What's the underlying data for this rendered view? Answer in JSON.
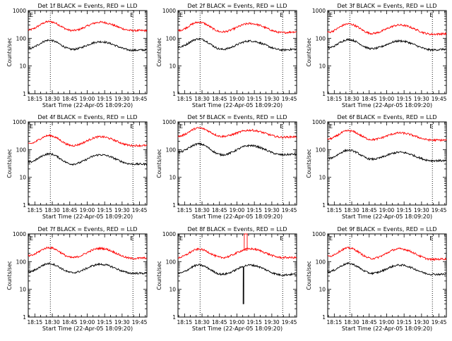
{
  "shared": {
    "xlabel": "Start Time (22-Apr-05 18:09:20)",
    "ylabel": "Counts/sec",
    "x_ticks": [
      "18:15",
      "18:30",
      "18:45",
      "19:00",
      "19:15",
      "19:30",
      "19:45"
    ],
    "y_ticks": [
      "1",
      "10",
      "100",
      "1000"
    ],
    "marker_left": "E",
    "marker_right": "E",
    "series_colors": {
      "events": "#000000",
      "lld": "#ff0000"
    }
  },
  "chart_data": [
    {
      "type": "line",
      "title": "Det 1f BLACK = Events, RED = LLD",
      "ylim": [
        1,
        1000
      ],
      "yscale": "log",
      "x_unit": "minutes after 18:09:20",
      "series": [
        {
          "key": "lld",
          "peaks": [
            [
              18,
              400
            ],
            [
              38,
              190
            ],
            [
              62,
              380
            ],
            [
              90,
              190
            ],
            [
              100,
              190
            ]
          ]
        },
        {
          "key": "events",
          "peaks": [
            [
              18,
              85
            ],
            [
              38,
              40
            ],
            [
              62,
              75
            ],
            [
              90,
              37
            ],
            [
              100,
              38
            ]
          ]
        }
      ]
    },
    {
      "type": "line",
      "title": "Det 2f BLACK = Events, RED = LLD",
      "ylim": [
        1,
        1000
      ],
      "yscale": "log",
      "x_unit": "minutes after 18:09:20",
      "series": [
        {
          "key": "lld",
          "peaks": [
            [
              18,
              380
            ],
            [
              38,
              170
            ],
            [
              62,
              340
            ],
            [
              90,
              160
            ],
            [
              100,
              170
            ]
          ]
        },
        {
          "key": "events",
          "peaks": [
            [
              18,
              95
            ],
            [
              38,
              40
            ],
            [
              62,
              80
            ],
            [
              90,
              38
            ],
            [
              100,
              40
            ]
          ]
        }
      ]
    },
    {
      "type": "line",
      "title": "Det 3f BLACK = Events, RED = LLD",
      "ylim": [
        1,
        1000
      ],
      "yscale": "log",
      "x_unit": "minutes after 18:09:20",
      "series": [
        {
          "key": "lld",
          "peaks": [
            [
              18,
              330
            ],
            [
              38,
              150
            ],
            [
              62,
              300
            ],
            [
              90,
              140
            ],
            [
              100,
              145
            ]
          ]
        },
        {
          "key": "events",
          "peaks": [
            [
              18,
              90
            ],
            [
              38,
              42
            ],
            [
              62,
              80
            ],
            [
              90,
              38
            ],
            [
              100,
              40
            ]
          ]
        }
      ]
    },
    {
      "type": "line",
      "title": "Det 4f BLACK = Events, RED = LLD",
      "ylim": [
        1,
        1000
      ],
      "yscale": "log",
      "x_unit": "minutes after 18:09:20",
      "series": [
        {
          "key": "lld",
          "peaks": [
            [
              18,
              320
            ],
            [
              38,
              140
            ],
            [
              62,
              290
            ],
            [
              90,
              140
            ],
            [
              100,
              140
            ]
          ]
        },
        {
          "key": "events",
          "peaks": [
            [
              18,
              70
            ],
            [
              38,
              30
            ],
            [
              62,
              65
            ],
            [
              90,
              30
            ],
            [
              100,
              30
            ]
          ]
        }
      ]
    },
    {
      "type": "line",
      "title": "Det 5f BLACK = Events, RED = LLD",
      "ylim": [
        1,
        1000
      ],
      "yscale": "log",
      "x_unit": "minutes after 18:09:20",
      "series": [
        {
          "key": "lld",
          "peaks": [
            [
              18,
              600
            ],
            [
              38,
              300
            ],
            [
              62,
              500
            ],
            [
              90,
              280
            ],
            [
              100,
              290
            ]
          ]
        },
        {
          "key": "events",
          "peaks": [
            [
              18,
              160
            ],
            [
              38,
              65
            ],
            [
              62,
              140
            ],
            [
              90,
              65
            ],
            [
              100,
              68
            ]
          ]
        }
      ]
    },
    {
      "type": "line",
      "title": "Det 6f BLACK = Events, RED = LLD",
      "ylim": [
        1,
        1000
      ],
      "yscale": "log",
      "x_unit": "minutes after 18:09:20",
      "series": [
        {
          "key": "lld",
          "peaks": [
            [
              18,
              480
            ],
            [
              38,
              230
            ],
            [
              62,
              400
            ],
            [
              90,
              220
            ],
            [
              100,
              220
            ]
          ]
        },
        {
          "key": "events",
          "peaks": [
            [
              18,
              95
            ],
            [
              38,
              45
            ],
            [
              62,
              80
            ],
            [
              90,
              40
            ],
            [
              100,
              40
            ]
          ]
        }
      ]
    },
    {
      "type": "line",
      "title": "Det 7f BLACK = Events, RED = LLD",
      "ylim": [
        1,
        1000
      ],
      "yscale": "log",
      "x_unit": "minutes after 18:09:20",
      "series": [
        {
          "key": "lld",
          "peaks": [
            [
              18,
              320
            ],
            [
              38,
              140
            ],
            [
              62,
              300
            ],
            [
              90,
              130
            ],
            [
              100,
              135
            ]
          ]
        },
        {
          "key": "events",
          "peaks": [
            [
              18,
              85
            ],
            [
              38,
              40
            ],
            [
              62,
              80
            ],
            [
              90,
              38
            ],
            [
              100,
              38
            ]
          ]
        }
      ]
    },
    {
      "type": "line",
      "title": "Det 8f BLACK = Events, RED = LLD",
      "ylim": [
        1,
        1000
      ],
      "yscale": "log",
      "x_unit": "minutes after 18:09:20",
      "series": [
        {
          "key": "lld",
          "peaks": [
            [
              18,
              280
            ],
            [
              38,
              140
            ],
            [
              62,
              290
            ],
            [
              90,
              140
            ],
            [
              100,
              140
            ]
          ],
          "spike": {
            "x": 57,
            "width": 2.5,
            "value": 1000
          }
        },
        {
          "key": "events",
          "peaks": [
            [
              18,
              75
            ],
            [
              38,
              35
            ],
            [
              62,
              75
            ],
            [
              90,
              33
            ],
            [
              100,
              35
            ]
          ],
          "spike": {
            "x": 56,
            "width": 0.6,
            "value": 3
          }
        }
      ]
    },
    {
      "type": "line",
      "title": "Det 9f BLACK = Events, RED = LLD",
      "ylim": [
        1,
        1000
      ],
      "yscale": "log",
      "x_unit": "minutes after 18:09:20",
      "series": [
        {
          "key": "lld",
          "peaks": [
            [
              18,
              310
            ],
            [
              38,
              130
            ],
            [
              62,
              290
            ],
            [
              90,
              120
            ],
            [
              100,
              125
            ]
          ]
        },
        {
          "key": "events",
          "peaks": [
            [
              18,
              85
            ],
            [
              38,
              38
            ],
            [
              62,
              75
            ],
            [
              90,
              35
            ],
            [
              100,
              35
            ]
          ]
        }
      ]
    }
  ]
}
